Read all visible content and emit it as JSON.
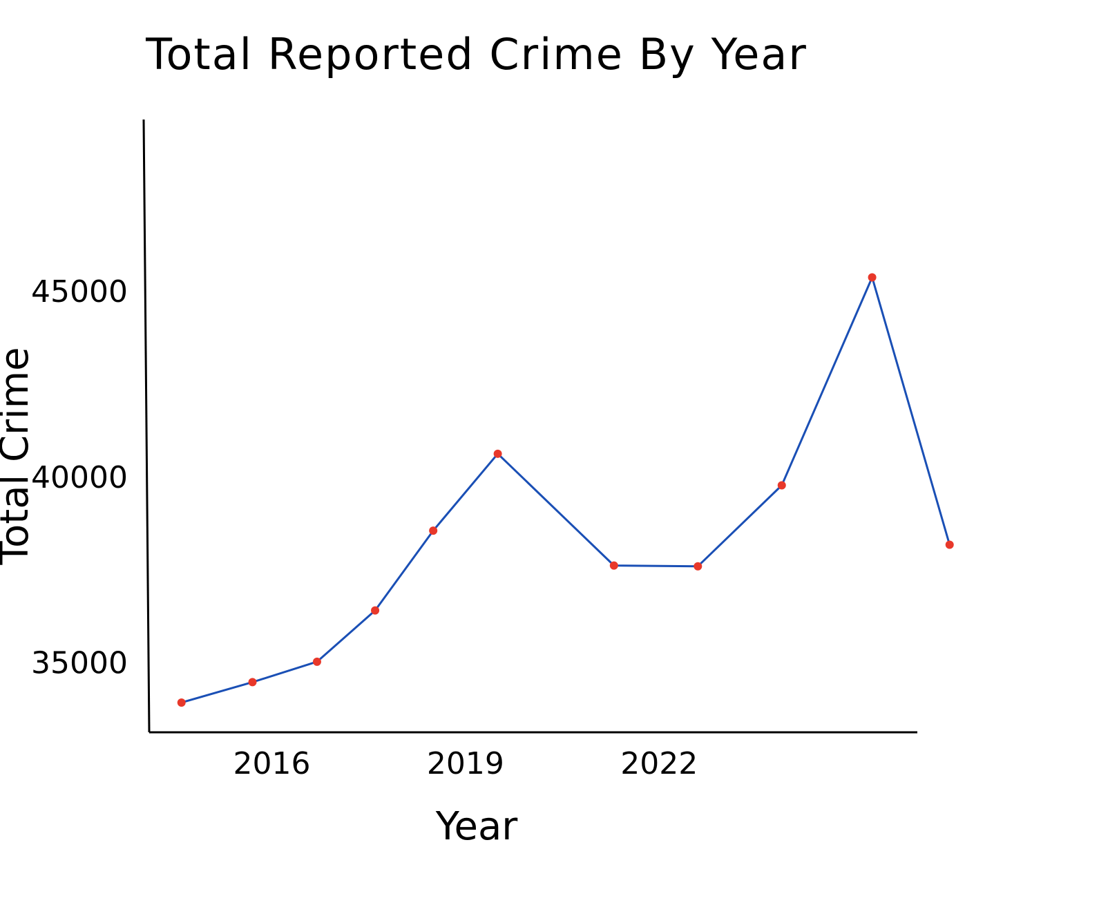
{
  "chart_data": {
    "type": "line",
    "title": "Total Reported Crime By Year",
    "xlabel": "Year",
    "ylabel": "Total Crime",
    "x": [
      2014.6,
      2015.7,
      2016.7,
      2017.6,
      2018.5,
      2019.5,
      2021.3,
      2022.6,
      2023.9,
      2025.3,
      2026.5
    ],
    "series": [
      {
        "values": [
          33950,
          34500,
          35050,
          36430,
          38580,
          40650,
          37640,
          37620,
          39800,
          45400,
          38200
        ]
      }
    ],
    "x_ticks": [
      2016,
      2019,
      2022
    ],
    "y_ticks": [
      35000,
      40000,
      45000
    ],
    "xlim": [
      2014.1,
      2026.0
    ],
    "ylim": [
      33150,
      49650
    ],
    "grid": false,
    "colors": {
      "line": "#1a4fb5",
      "marker": "#e8382a",
      "axis": "#000000"
    }
  }
}
